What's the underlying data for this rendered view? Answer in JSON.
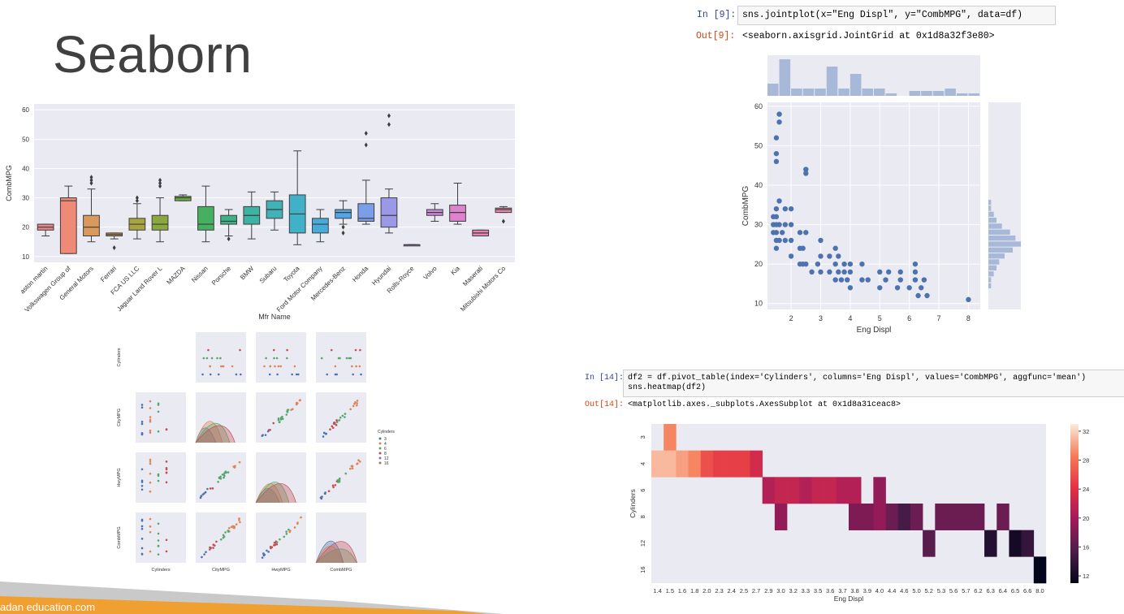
{
  "slide": {
    "title": "Seaborn",
    "footer": "adan education.com"
  },
  "cell9": {
    "in_prompt": "In [9]:",
    "code": "sns.jointplot(x=\"Eng Displ\", y=\"CombMPG\", data=df)",
    "out_prompt": "Out[9]:",
    "output": "<seaborn.axisgrid.JointGrid at 0x1d8a32f3e80>"
  },
  "cell14": {
    "in_prompt": "In [14]:",
    "code_line1": "df2 = df.pivot_table(index='Cylinders', columns='Eng Displ', values='CombMPG', aggfunc='mean')",
    "code_line2": "sns.heatmap(df2)",
    "out_prompt": "Out[14]:",
    "output": "<matplotlib.axes._subplots.AxesSubplot at 0x1d8a31ceac8>"
  },
  "colors": {
    "plot_bg": "#eaeaf2",
    "grid": "#ffffff",
    "seaborn_blue": "#4c72b0",
    "footer_orange": "#f0a030"
  },
  "chart_data": [
    {
      "type": "box",
      "xlabel": "Mfr Name",
      "ylabel": "CombMPG",
      "ylim": [
        8,
        62
      ],
      "yticks": [
        10,
        20,
        30,
        40,
        50,
        60
      ],
      "categories": [
        "aston martin",
        "Volkswagen Group of",
        "General Motors",
        "Ferrari",
        "FCA US LLC",
        "Jaguar Land Rover L",
        "MAZDA",
        "Nissan",
        "Porsche",
        "BMW",
        "Subaru",
        "Toyota",
        "Ford Motor Company",
        "Mercedes-Benz",
        "Honda",
        "Hyundai",
        "Rolls-Royce",
        "Volvo",
        "Kia",
        "Maserati",
        "Mitsubishi Motors Co"
      ],
      "boxes": [
        {
          "lw": 17,
          "q1": 19,
          "med": 20,
          "q3": 21,
          "hw": 21,
          "fliers": [],
          "color": "#e8878b"
        },
        {
          "lw": 11,
          "q1": 11,
          "med": 29,
          "q3": 30,
          "hw": 34,
          "fliers": [],
          "color": "#ee8a75"
        },
        {
          "lw": 15,
          "q1": 17,
          "med": 20,
          "q3": 24,
          "hw": 33,
          "fliers": [
            35,
            36,
            37
          ],
          "color": "#d9985c"
        },
        {
          "lw": 16,
          "q1": 17,
          "med": 17.5,
          "q3": 18,
          "hw": 18,
          "fliers": [
            13
          ],
          "color": "#c49a4a"
        },
        {
          "lw": 16,
          "q1": 19,
          "med": 21,
          "q3": 23,
          "hw": 28,
          "fliers": [
            29,
            30
          ],
          "color": "#a8a540"
        },
        {
          "lw": 15,
          "q1": 19,
          "med": 21,
          "q3": 24,
          "hw": 30,
          "fliers": [
            34,
            35,
            36
          ],
          "color": "#8ba83f"
        },
        {
          "lw": 29,
          "q1": 29,
          "med": 30,
          "q3": 30.5,
          "hw": 31,
          "fliers": [],
          "color": "#6aad47"
        },
        {
          "lw": 15,
          "q1": 19,
          "med": 21,
          "q3": 27,
          "hw": 34,
          "fliers": [],
          "color": "#46b061"
        },
        {
          "lw": 17,
          "q1": 21,
          "med": 22,
          "q3": 24,
          "hw": 26,
          "fliers": [
            16
          ],
          "color": "#3db28a"
        },
        {
          "lw": 16,
          "q1": 21,
          "med": 24,
          "q3": 27,
          "hw": 32,
          "fliers": [],
          "color": "#3db3a3"
        },
        {
          "lw": 19,
          "q1": 23,
          "med": 26,
          "q3": 29,
          "hw": 32,
          "fliers": [],
          "color": "#3fb3b8"
        },
        {
          "lw": 14,
          "q1": 18,
          "med": 24.5,
          "q3": 31,
          "hw": 46,
          "fliers": [],
          "color": "#41b1c9"
        },
        {
          "lw": 15,
          "q1": 18,
          "med": 21,
          "q3": 23,
          "hw": 26,
          "fliers": [],
          "color": "#45acd8"
        },
        {
          "lw": 21,
          "q1": 23,
          "med": 25,
          "q3": 26,
          "hw": 29,
          "fliers": [
            18,
            20
          ],
          "color": "#53a6e3"
        },
        {
          "lw": 21,
          "q1": 22,
          "med": 23,
          "q3": 28,
          "hw": 36,
          "fliers": [
            48,
            52
          ],
          "color": "#7a9fe8"
        },
        {
          "lw": 18,
          "q1": 20,
          "med": 24,
          "q3": 30,
          "hw": 33,
          "fliers": [
            55,
            58
          ],
          "color": "#9b98e8"
        },
        {
          "lw": 14,
          "q1": 14,
          "med": 14,
          "q3": 14,
          "hw": 14,
          "fliers": [],
          "color": "#b590e3"
        },
        {
          "lw": 22,
          "q1": 24,
          "med": 25,
          "q3": 26,
          "hw": 28,
          "fliers": [],
          "color": "#cb88dc"
        },
        {
          "lw": 21,
          "q1": 22,
          "med": 25,
          "q3": 27.5,
          "hw": 35,
          "fliers": [],
          "color": "#dd82cd"
        },
        {
          "lw": 17,
          "q1": 17,
          "med": 18,
          "q3": 19,
          "hw": 19,
          "fliers": [],
          "color": "#e683b8"
        },
        {
          "lw": 25,
          "q1": 25,
          "med": 26,
          "q3": 26.5,
          "hw": 27,
          "fliers": [
            22
          ],
          "color": "#e885a3"
        }
      ]
    },
    {
      "type": "scatter",
      "xlabel": "Eng Displ",
      "ylabel": "CombMPG",
      "xlim": [
        1.2,
        8.4
      ],
      "ylim": [
        8.5,
        61
      ],
      "xticks": [
        2,
        3,
        4,
        5,
        6,
        7,
        8
      ],
      "yticks": [
        10,
        20,
        30,
        40,
        50,
        60
      ],
      "points": [
        [
          1.4,
          28
        ],
        [
          1.4,
          30
        ],
        [
          1.4,
          32
        ],
        [
          1.5,
          24
        ],
        [
          1.5,
          26
        ],
        [
          1.5,
          28
        ],
        [
          1.5,
          30
        ],
        [
          1.5,
          32
        ],
        [
          1.5,
          34
        ],
        [
          1.5,
          46
        ],
        [
          1.5,
          48
        ],
        [
          1.5,
          52
        ],
        [
          1.6,
          56
        ],
        [
          1.6,
          58
        ],
        [
          1.6,
          26
        ],
        [
          1.6,
          30
        ],
        [
          1.6,
          36
        ],
        [
          1.7,
          28
        ],
        [
          1.8,
          26
        ],
        [
          1.8,
          30
        ],
        [
          1.8,
          34
        ],
        [
          2.0,
          22
        ],
        [
          2.0,
          26
        ],
        [
          2.0,
          30
        ],
        [
          2.0,
          34
        ],
        [
          2.3,
          20
        ],
        [
          2.3,
          24
        ],
        [
          2.3,
          28
        ],
        [
          2.4,
          20
        ],
        [
          2.4,
          24
        ],
        [
          2.5,
          44
        ],
        [
          2.5,
          43
        ],
        [
          2.5,
          20
        ],
        [
          2.5,
          28
        ],
        [
          2.7,
          18
        ],
        [
          2.9,
          20
        ],
        [
          3.0,
          18
        ],
        [
          3.0,
          22
        ],
        [
          3.0,
          26
        ],
        [
          3.3,
          18
        ],
        [
          3.3,
          22
        ],
        [
          3.5,
          16
        ],
        [
          3.5,
          20
        ],
        [
          3.5,
          24
        ],
        [
          3.6,
          18
        ],
        [
          3.6,
          22
        ],
        [
          3.7,
          16
        ],
        [
          3.8,
          18
        ],
        [
          3.8,
          20
        ],
        [
          3.9,
          16
        ],
        [
          4.0,
          14
        ],
        [
          4.0,
          18
        ],
        [
          4.0,
          20
        ],
        [
          4.4,
          16
        ],
        [
          4.4,
          20
        ],
        [
          4.6,
          16
        ],
        [
          5.0,
          14
        ],
        [
          5.0,
          18
        ],
        [
          5.2,
          16
        ],
        [
          5.3,
          18
        ],
        [
          5.6,
          14
        ],
        [
          5.7,
          16
        ],
        [
          5.7,
          18
        ],
        [
          6.0,
          14
        ],
        [
          6.2,
          16
        ],
        [
          6.2,
          18
        ],
        [
          6.2,
          20
        ],
        [
          6.3,
          12
        ],
        [
          6.4,
          14
        ],
        [
          6.5,
          16
        ],
        [
          6.6,
          12
        ],
        [
          8.0,
          11
        ]
      ],
      "top_hist": [
        5,
        15,
        3,
        3,
        3,
        12,
        3,
        9,
        3,
        3,
        1,
        0,
        2,
        2,
        2,
        3,
        1,
        1
      ],
      "right_hist": [
        1,
        1,
        2,
        3,
        5,
        8,
        10,
        12,
        9,
        6,
        4,
        3,
        2,
        1,
        1
      ]
    },
    {
      "type": "heatmap",
      "xlabel": "Eng Displ",
      "ylabel": "Cylinders",
      "columns": [
        "1.4",
        "1.5",
        "1.6",
        "1.8",
        "2.0",
        "2.3",
        "2.4",
        "2.5",
        "2.7",
        "2.9",
        "3.0",
        "3.2",
        "3.3",
        "3.5",
        "3.6",
        "3.7",
        "3.8",
        "3.9",
        "4.0",
        "4.4",
        "4.6",
        "5.0",
        "5.2",
        "5.3",
        "5.6",
        "5.7",
        "6.2",
        "6.3",
        "6.4",
        "6.5",
        "6.6",
        "8.0"
      ],
      "rows": [
        "3",
        "4",
        "6",
        "8",
        "12",
        "16"
      ],
      "colorbar_ticks": [
        12,
        16,
        20,
        24,
        28,
        32
      ],
      "vmin": 11,
      "vmax": 33
    },
    {
      "type": "scatter",
      "subtype": "pairplot",
      "variables": [
        "Cylinders",
        "CityMPG",
        "HwyMPG",
        "CombMPG"
      ],
      "row_labels": [
        "Cylinders",
        "CityMPG",
        "HwyMPG",
        "CombMPG"
      ],
      "x_axis_labels": [
        "Cylinders",
        "CityMPG",
        "HwyMPG",
        "CombMPG"
      ],
      "legend_title": "Cylinders",
      "legend": [
        "3",
        "4",
        "6",
        "8",
        "12",
        "16"
      ],
      "legend_colors": [
        "#4c72b0",
        "#dd8452",
        "#55a868",
        "#c44e52",
        "#8172b3",
        "#937860"
      ]
    }
  ]
}
